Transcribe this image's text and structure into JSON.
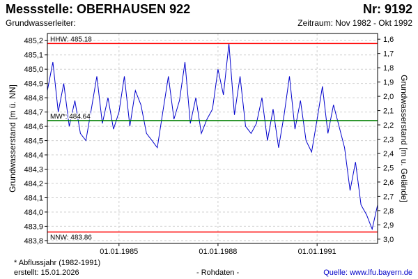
{
  "header": {
    "title": "Messstelle: OBERHAUSEN 922",
    "number": "Nr: 9192",
    "aquifer_label": "Grundwasserleiter:",
    "period": "Zeitraum: Nov 1982 - Okt 1992"
  },
  "footer": {
    "note": "* Abflussjahr (1982-1991)",
    "created": "erstellt:  15.01.2026",
    "raw": "- Rohdaten -",
    "source": "Quelle:  www.lfu.bayern.de"
  },
  "chart_data": {
    "type": "line",
    "xlabel": "",
    "ylabel": "Grundwasserstand [m ü. NN]",
    "y2label": "Grundwasserstand [m u. Gelände]",
    "xlim": [
      "1982-11-01",
      "1992-10-31"
    ],
    "ylim": [
      483.78,
      485.25
    ],
    "y2lim": [
      3.03,
      1.56
    ],
    "x_ticks": [
      "01.01.1985",
      "01.01.1988",
      "01.01.1991"
    ],
    "y_ticks": [
      "485,2",
      "485,1",
      "485,0",
      "484,9",
      "484,8",
      "484,7",
      "484,6",
      "484,5",
      "484,4",
      "484,3",
      "484,2",
      "484,1",
      "484,0",
      "483,9",
      "483,8"
    ],
    "y2_ticks": [
      "1,6",
      "1,7",
      "1,8",
      "1,9",
      "2,0",
      "2,1",
      "2,2",
      "2,3",
      "2,4",
      "2,5",
      "2,6",
      "2,7",
      "2,8",
      "2,9",
      "3,0"
    ],
    "grid": true,
    "reference_lines": [
      {
        "label": "HHW: 485.18",
        "value": 485.18,
        "color": "#ff0000"
      },
      {
        "label": "MW*: 484.64",
        "value": 484.64,
        "color": "#008000"
      },
      {
        "label": "NNW: 483.86",
        "value": 483.86,
        "color": "#ff0000"
      }
    ],
    "series_color": "#0000cc",
    "series": [
      {
        "x": [
          "1982-11-01",
          "1983-01-01",
          "1983-03-01",
          "1983-05-01",
          "1983-07-01",
          "1983-09-01",
          "1983-11-01",
          "1984-01-01",
          "1984-03-01",
          "1984-05-01",
          "1984-07-01",
          "1984-09-01",
          "1984-11-01",
          "1985-01-01",
          "1985-03-01",
          "1985-05-01",
          "1985-07-01",
          "1985-09-01",
          "1985-11-01",
          "1986-01-01",
          "1986-03-01",
          "1986-05-01",
          "1986-07-01",
          "1986-09-01",
          "1986-11-01",
          "1987-01-01",
          "1987-03-01",
          "1987-05-01",
          "1987-07-01",
          "1987-09-01",
          "1987-11-01",
          "1988-01-01",
          "1988-03-01",
          "1988-05-01",
          "1988-07-01",
          "1988-09-01",
          "1988-11-01",
          "1989-01-01",
          "1989-03-01",
          "1989-05-01",
          "1989-07-01",
          "1989-09-01",
          "1989-11-01",
          "1990-01-01",
          "1990-03-01",
          "1990-05-01",
          "1990-07-01",
          "1990-09-01",
          "1990-11-01",
          "1991-01-01",
          "1991-03-01",
          "1991-05-01",
          "1991-07-01",
          "1991-09-01",
          "1991-11-01",
          "1992-01-01",
          "1992-03-01",
          "1992-05-01",
          "1992-07-01",
          "1992-09-01",
          "1992-10-31"
        ],
        "values": [
          484.85,
          485.05,
          484.7,
          484.9,
          484.6,
          484.78,
          484.55,
          484.5,
          484.72,
          484.95,
          484.62,
          484.8,
          484.58,
          484.7,
          484.95,
          484.6,
          484.85,
          484.75,
          484.55,
          484.5,
          484.45,
          484.7,
          484.95,
          484.65,
          484.78,
          485.05,
          484.62,
          484.8,
          484.55,
          484.65,
          484.72,
          485.0,
          484.82,
          485.18,
          484.68,
          484.95,
          484.6,
          484.55,
          484.62,
          484.8,
          484.5,
          484.72,
          484.45,
          484.68,
          484.95,
          484.58,
          484.78,
          484.5,
          484.42,
          484.65,
          484.88,
          484.55,
          484.75,
          484.6,
          484.45,
          484.15,
          484.35,
          484.05,
          483.98,
          483.88,
          484.05
        ]
      }
    ]
  }
}
